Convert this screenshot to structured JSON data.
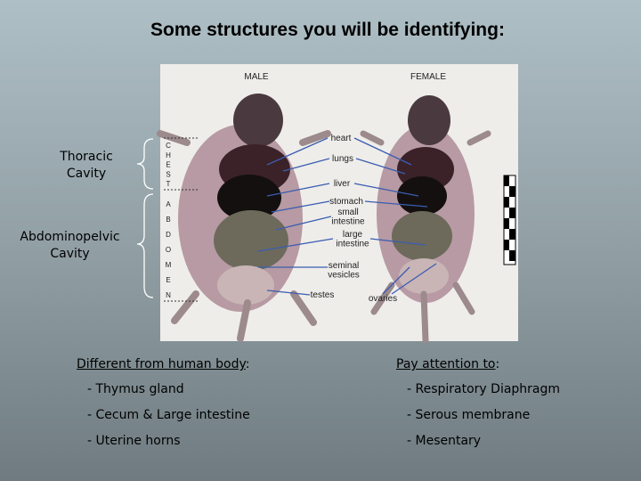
{
  "title": "Some structures you will be identifying:",
  "cavities": [
    {
      "label": "Thoracic Cavity"
    },
    {
      "label": "Abdominopelvic Cavity"
    }
  ],
  "image": {
    "male": "MALE",
    "female": "FEMALE",
    "chest_letters": [
      "C",
      "H",
      "E",
      "S",
      "T"
    ],
    "abdomen_letters": [
      "A",
      "B",
      "D",
      "O",
      "M",
      "E",
      "N"
    ],
    "labels": [
      {
        "lines": [
          "heart"
        ]
      },
      {
        "lines": [
          "lungs"
        ]
      },
      {
        "lines": [
          "liver"
        ]
      },
      {
        "lines": [
          "stomach"
        ]
      },
      {
        "lines": [
          "small",
          "intestine"
        ]
      },
      {
        "lines": [
          "large",
          "intestine"
        ]
      },
      {
        "lines": [
          "seminal",
          "vesicles"
        ]
      },
      {
        "lines": [
          "testes"
        ]
      },
      {
        "lines": [
          "ovaries"
        ]
      }
    ]
  },
  "lists": [
    {
      "heading": "Different from human body",
      "suffix": ":",
      "items": [
        "- Thymus gland",
        "- Cecum & Large intestine",
        "- Uterine horns"
      ]
    },
    {
      "heading": "Pay attention to",
      "suffix": ":",
      "items": [
        "- Respiratory Diaphragm",
        "- Serous membrane",
        "- Mesentary"
      ]
    }
  ]
}
